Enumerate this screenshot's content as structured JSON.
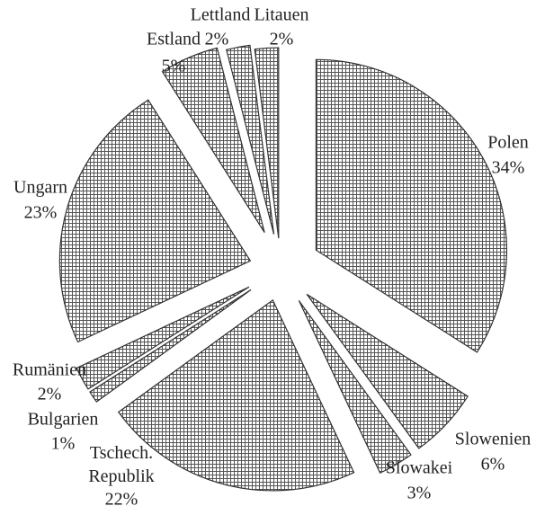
{
  "chart_data": {
    "type": "pie",
    "categories": [
      "Polen",
      "Slowenien",
      "Slowakei",
      "Tschech. Republik",
      "Bulgarien",
      "Rumänien",
      "Ungarn",
      "Estland",
      "Lettland",
      "Litauen"
    ],
    "values": [
      34,
      6,
      3,
      22,
      1,
      2,
      23,
      5,
      2,
      2
    ],
    "value_labels": [
      "34%",
      "6%",
      "3%",
      "22%",
      "1%",
      "2%",
      "23%",
      "5%",
      "2%",
      "2%"
    ],
    "color": "#555555"
  }
}
